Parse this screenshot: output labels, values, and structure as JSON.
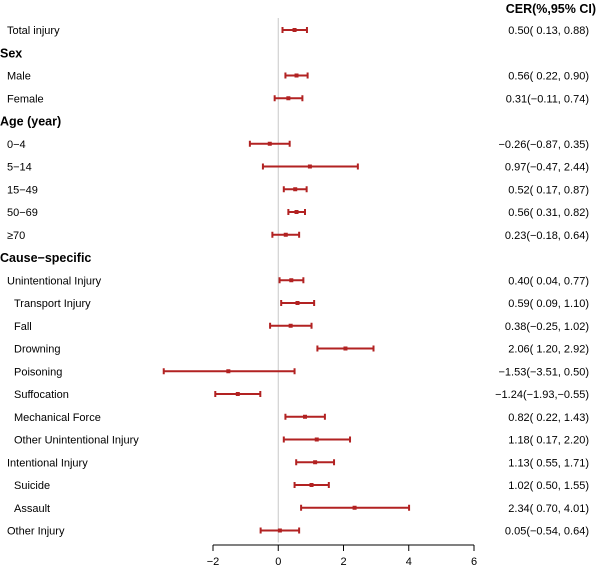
{
  "chart_data": {
    "type": "forest",
    "column_header": "CER(%,95% CI)",
    "xlim": [
      -2.2,
      6
    ],
    "xticks": [
      "−2",
      "0",
      "2",
      "4",
      "6"
    ],
    "reference_line": 0,
    "colors": {
      "marker": "#b22222",
      "reference": "#c8c8c8",
      "axis": "#000000"
    },
    "rows": [
      {
        "label": "Total injury",
        "kind": "item",
        "indent": 0,
        "est": 0.5,
        "lo": 0.13,
        "hi": 0.88,
        "ci_text": "0.50( 0.13, 0.88)"
      },
      {
        "label": "Sex",
        "kind": "header"
      },
      {
        "label": "Male",
        "kind": "item",
        "indent": 0,
        "est": 0.56,
        "lo": 0.22,
        "hi": 0.9,
        "ci_text": "0.56( 0.22, 0.90)"
      },
      {
        "label": "Female",
        "kind": "item",
        "indent": 0,
        "est": 0.31,
        "lo": -0.11,
        "hi": 0.74,
        "ci_text": "0.31(−0.11, 0.74)"
      },
      {
        "label": "Age (year)",
        "kind": "header"
      },
      {
        "label": "0−4",
        "kind": "item",
        "indent": 0,
        "est": -0.26,
        "lo": -0.87,
        "hi": 0.35,
        "ci_text": "−0.26(−0.87, 0.35)"
      },
      {
        "label": "5−14",
        "kind": "item",
        "indent": 0,
        "est": 0.97,
        "lo": -0.47,
        "hi": 2.44,
        "ci_text": "0.97(−0.47, 2.44)"
      },
      {
        "label": "15−49",
        "kind": "item",
        "indent": 0,
        "est": 0.52,
        "lo": 0.17,
        "hi": 0.87,
        "ci_text": "0.52( 0.17, 0.87)"
      },
      {
        "label": "50−69",
        "kind": "item",
        "indent": 0,
        "est": 0.56,
        "lo": 0.31,
        "hi": 0.82,
        "ci_text": "0.56( 0.31, 0.82)"
      },
      {
        "label": "≥70",
        "kind": "item",
        "indent": 0,
        "est": 0.23,
        "lo": -0.18,
        "hi": 0.64,
        "ci_text": "0.23(−0.18, 0.64)"
      },
      {
        "label": "Cause−specific",
        "kind": "header"
      },
      {
        "label": "Unintentional Injury",
        "kind": "item",
        "indent": 0,
        "est": 0.4,
        "lo": 0.04,
        "hi": 0.77,
        "ci_text": "0.40( 0.04, 0.77)"
      },
      {
        "label": "Transport Injury",
        "kind": "item",
        "indent": 1,
        "est": 0.59,
        "lo": 0.09,
        "hi": 1.1,
        "ci_text": "0.59( 0.09, 1.10)"
      },
      {
        "label": "Fall",
        "kind": "item",
        "indent": 1,
        "est": 0.38,
        "lo": -0.25,
        "hi": 1.02,
        "ci_text": "0.38(−0.25, 1.02)"
      },
      {
        "label": "Drowning",
        "kind": "item",
        "indent": 1,
        "est": 2.06,
        "lo": 1.2,
        "hi": 2.92,
        "ci_text": "2.06( 1.20, 2.92)"
      },
      {
        "label": "Poisoning",
        "kind": "item",
        "indent": 1,
        "est": -1.53,
        "lo": -3.51,
        "hi": 0.5,
        "ci_text": "−1.53(−3.51, 0.50)"
      },
      {
        "label": "Suffocation",
        "kind": "item",
        "indent": 1,
        "est": -1.24,
        "lo": -1.93,
        "hi": -0.55,
        "ci_text": "−1.24(−1.93,−0.55)"
      },
      {
        "label": "Mechanical Force",
        "kind": "item",
        "indent": 1,
        "est": 0.82,
        "lo": 0.22,
        "hi": 1.43,
        "ci_text": "0.82( 0.22, 1.43)"
      },
      {
        "label": "Other Unintentional Injury",
        "kind": "item",
        "indent": 1,
        "est": 1.18,
        "lo": 0.17,
        "hi": 2.2,
        "ci_text": "1.18( 0.17, 2.20)"
      },
      {
        "label": "Intentional Injury",
        "kind": "item",
        "indent": 0,
        "est": 1.13,
        "lo": 0.55,
        "hi": 1.71,
        "ci_text": "1.13( 0.55, 1.71)"
      },
      {
        "label": "Suicide",
        "kind": "item",
        "indent": 1,
        "est": 1.02,
        "lo": 0.5,
        "hi": 1.55,
        "ci_text": "1.02( 0.50, 1.55)"
      },
      {
        "label": "Assault",
        "kind": "item",
        "indent": 1,
        "est": 2.34,
        "lo": 0.7,
        "hi": 4.01,
        "ci_text": "2.34( 0.70, 4.01)"
      },
      {
        "label": "Other Injury",
        "kind": "item",
        "indent": 0,
        "est": 0.05,
        "lo": -0.54,
        "hi": 0.64,
        "ci_text": "0.05(−0.54, 0.64)"
      }
    ]
  }
}
